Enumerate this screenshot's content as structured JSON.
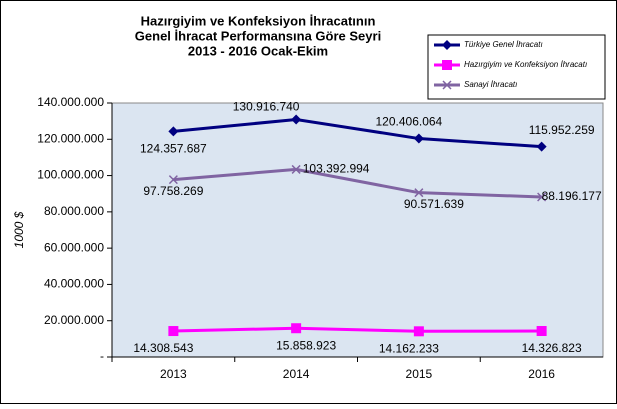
{
  "chart_data": {
    "type": "line",
    "title": [
      "Hazırgiyim ve Konfeksiyon  İhracatının",
      "Genel İhracat Performansına Göre Seyri",
      "2013 - 2016 Ocak-Ekim"
    ],
    "y_label": "1000 $",
    "categories": [
      "2013",
      "2014",
      "2015",
      "2016"
    ],
    "series": [
      {
        "name": "Türkiye Genel İhracatı",
        "color": "#000080",
        "marker": "diamond",
        "values": [
          124357687,
          130916740,
          120406064,
          115952259
        ],
        "value_labels": [
          "124.357.687",
          "130.916.740",
          "120.406.064",
          "115.952.259"
        ]
      },
      {
        "name": "Hazırgiyim ve Konfeksiyon İhracatı",
        "color": "#ff00ff",
        "marker": "square",
        "values": [
          14308543,
          15858923,
          14162233,
          14326823
        ],
        "value_labels": [
          "14.308.543",
          "15.858.923",
          "14.162.233",
          "14.326.823"
        ]
      },
      {
        "name": "Sanayi İhracatı",
        "color": "#8064a2",
        "marker": "x",
        "values": [
          97758269,
          103392994,
          90571639,
          88196177
        ],
        "value_labels": [
          "97.758.269",
          "103.392.994",
          "90.571.639",
          "88.196.177"
        ]
      }
    ],
    "ylim": [
      0,
      140000000
    ],
    "yticks": [
      {
        "value": 0,
        "label": "-"
      },
      {
        "value": 20000000,
        "label": "20.000.000"
      },
      {
        "value": 40000000,
        "label": "40.000.000"
      },
      {
        "value": 60000000,
        "label": "60.000.000"
      },
      {
        "value": 80000000,
        "label": "80.000.000"
      },
      {
        "value": 100000000,
        "label": "100.000.000"
      },
      {
        "value": 120000000,
        "label": "120.000.000"
      },
      {
        "value": 140000000,
        "label": "140.000.000"
      }
    ],
    "grid": false,
    "legend": "top-right",
    "plot_background": "#dbe5f1"
  }
}
